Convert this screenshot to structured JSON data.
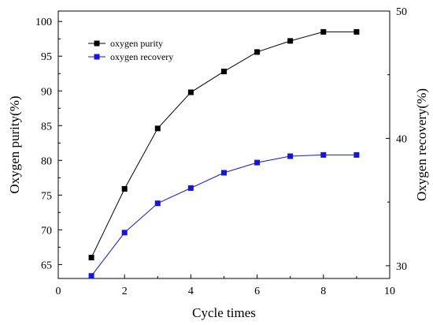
{
  "chart_data": {
    "type": "line",
    "xlabel": "Cycle times",
    "ylabel": "Oxygen purity(%)",
    "y2label": "Oxygen recovery(%)",
    "xlim": [
      0,
      10
    ],
    "ylim": [
      63,
      101.5
    ],
    "y2lim": [
      29,
      50
    ],
    "x_ticks": [
      0,
      2,
      4,
      6,
      8,
      10
    ],
    "y_ticks": [
      65,
      70,
      75,
      80,
      85,
      90,
      95,
      100
    ],
    "y2_ticks": [
      30,
      40,
      50
    ],
    "grid": false,
    "legend_position": "top-left",
    "x": [
      1,
      2,
      3,
      4,
      5,
      6,
      7,
      8,
      9
    ],
    "series": [
      {
        "name": "oxygen purity",
        "axis": "left",
        "color": "#000000",
        "marker": "square",
        "values": [
          66.0,
          75.9,
          84.6,
          89.8,
          92.8,
          95.6,
          97.2,
          98.5,
          98.5
        ]
      },
      {
        "name": "oxygen recovery",
        "axis": "right",
        "color": "#1414e6",
        "marker": "square",
        "values": [
          29.2,
          32.6,
          34.9,
          36.1,
          37.3,
          38.1,
          38.6,
          38.7,
          38.7
        ]
      }
    ]
  }
}
